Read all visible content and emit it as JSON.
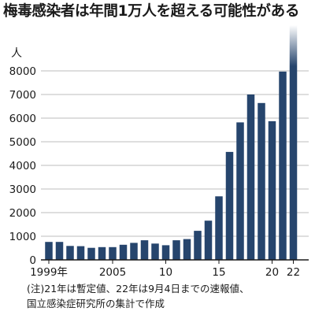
{
  "chart_data": {
    "type": "bar",
    "title": "梅毒感染者は年間1万人を超える可能性がある",
    "ylabel": "人",
    "xlabel": "",
    "ylim": [
      0,
      8000
    ],
    "y_ticks": [
      0,
      1000,
      2000,
      3000,
      4000,
      5000,
      6000,
      7000,
      8000
    ],
    "y_tick_labels": [
      "0",
      "1000",
      "2000",
      "3000",
      "4000",
      "5000",
      "6000",
      "7000",
      "8000"
    ],
    "x_tick_labels": [
      {
        "year": 1999,
        "label": "1999年"
      },
      {
        "year": 2005,
        "label": "2005"
      },
      {
        "year": 2010,
        "label": "10"
      },
      {
        "year": 2015,
        "label": "15"
      },
      {
        "year": 2020,
        "label": "20"
      },
      {
        "year": 2022,
        "label": "22"
      }
    ],
    "grid": true,
    "years": [
      1999,
      2000,
      2001,
      2002,
      2003,
      2004,
      2005,
      2006,
      2007,
      2008,
      2009,
      2010,
      2011,
      2012,
      2013,
      2014,
      2015,
      2016,
      2017,
      2018,
      2019,
      2020,
      2021,
      2022
    ],
    "values": [
      760,
      760,
      590,
      580,
      510,
      540,
      540,
      640,
      720,
      830,
      690,
      620,
      830,
      880,
      1230,
      1660,
      2690,
      4570,
      5820,
      7000,
      6640,
      5870,
      7970,
      8200
    ],
    "extends_beyond_axis": [
      2022
    ],
    "bar_color": "#26456d"
  },
  "notes": {
    "line1": "(注)21年は暫定値、22年は9月4日までの速報値、",
    "line2": "国立感染症研究所の集計で作成"
  }
}
